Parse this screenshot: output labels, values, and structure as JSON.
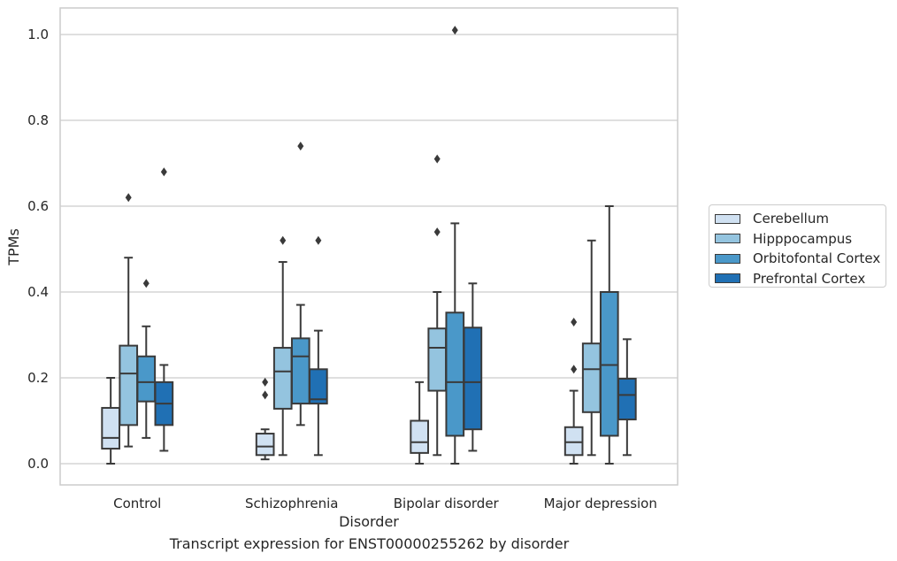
{
  "caption": "Transcript expression for ENST00000255262 by disorder",
  "chart_data": {
    "type": "box",
    "xlabel": "Disorder",
    "ylabel": "TPMs",
    "ylim": [
      -0.05,
      1.06
    ],
    "yticks": [
      "0.0",
      "0.2",
      "0.4",
      "0.6",
      "0.8",
      "1.0"
    ],
    "grid": "horizontal",
    "legend_position": "right",
    "categories": [
      "Control",
      "Schizophrenia",
      "Bipolar disorder",
      "Major depression"
    ],
    "series": [
      {
        "name": "Cerebellum",
        "color": "#d0e1f2",
        "boxes": [
          {
            "whisker_low": 0.0,
            "q1": 0.035,
            "median": 0.06,
            "q3": 0.13,
            "whisker_high": 0.2,
            "outliers": []
          },
          {
            "whisker_low": 0.01,
            "q1": 0.02,
            "median": 0.04,
            "q3": 0.07,
            "whisker_high": 0.08,
            "outliers": [
              0.16,
              0.19
            ]
          },
          {
            "whisker_low": 0.0,
            "q1": 0.025,
            "median": 0.05,
            "q3": 0.1,
            "whisker_high": 0.19,
            "outliers": []
          },
          {
            "whisker_low": 0.0,
            "q1": 0.02,
            "median": 0.05,
            "q3": 0.085,
            "whisker_high": 0.17,
            "outliers": [
              0.22,
              0.33
            ]
          }
        ]
      },
      {
        "name": "Hipppocampus",
        "color": "#94c4df",
        "boxes": [
          {
            "whisker_low": 0.04,
            "q1": 0.09,
            "median": 0.21,
            "q3": 0.275,
            "whisker_high": 0.48,
            "outliers": [
              0.62
            ]
          },
          {
            "whisker_low": 0.02,
            "q1": 0.128,
            "median": 0.215,
            "q3": 0.27,
            "whisker_high": 0.47,
            "outliers": [
              0.52
            ]
          },
          {
            "whisker_low": 0.02,
            "q1": 0.17,
            "median": 0.27,
            "q3": 0.315,
            "whisker_high": 0.4,
            "outliers": [
              0.54,
              0.71
            ]
          },
          {
            "whisker_low": 0.02,
            "q1": 0.12,
            "median": 0.22,
            "q3": 0.28,
            "whisker_high": 0.52,
            "outliers": []
          }
        ]
      },
      {
        "name": "Orbitofontal Cortex",
        "color": "#4a98c9",
        "boxes": [
          {
            "whisker_low": 0.06,
            "q1": 0.145,
            "median": 0.19,
            "q3": 0.25,
            "whisker_high": 0.32,
            "outliers": [
              0.42
            ]
          },
          {
            "whisker_low": 0.09,
            "q1": 0.14,
            "median": 0.25,
            "q3": 0.292,
            "whisker_high": 0.37,
            "outliers": [
              0.74
            ]
          },
          {
            "whisker_low": 0.0,
            "q1": 0.065,
            "median": 0.19,
            "q3": 0.352,
            "whisker_high": 0.56,
            "outliers": [
              1.01
            ]
          },
          {
            "whisker_low": 0.0,
            "q1": 0.065,
            "median": 0.23,
            "q3": 0.4,
            "whisker_high": 0.6,
            "outliers": []
          }
        ]
      },
      {
        "name": "Prefrontal Cortex",
        "color": "#2070b4",
        "boxes": [
          {
            "whisker_low": 0.03,
            "q1": 0.09,
            "median": 0.14,
            "q3": 0.19,
            "whisker_high": 0.23,
            "outliers": [
              0.68
            ]
          },
          {
            "whisker_low": 0.02,
            "q1": 0.14,
            "median": 0.15,
            "q3": 0.22,
            "whisker_high": 0.31,
            "outliers": [
              0.52
            ]
          },
          {
            "whisker_low": 0.03,
            "q1": 0.08,
            "median": 0.19,
            "q3": 0.317,
            "whisker_high": 0.42,
            "outliers": []
          },
          {
            "whisker_low": 0.02,
            "q1": 0.103,
            "median": 0.16,
            "q3": 0.198,
            "whisker_high": 0.29,
            "outliers": []
          }
        ]
      }
    ]
  }
}
